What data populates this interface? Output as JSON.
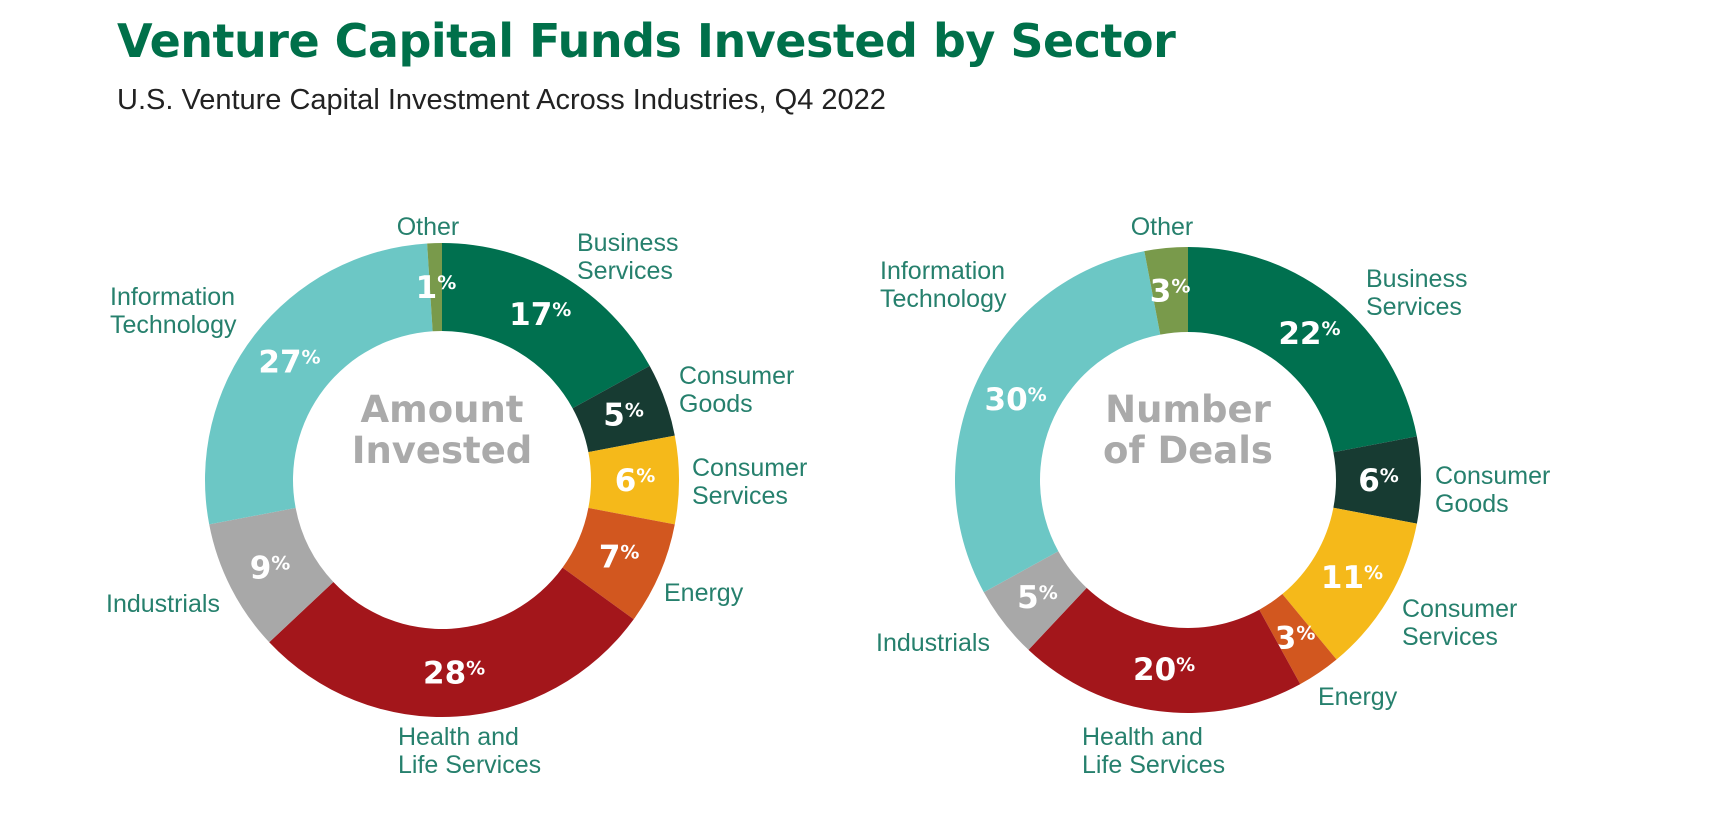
{
  "title": "Venture Capital Funds Invested by Sector",
  "subtitle": "U.S. Venture Capital Investment Across Industries, Q4 2022",
  "colors": {
    "title": "#00704a",
    "label": "#26806d",
    "center": "#aaaaaa"
  },
  "chart_data": [
    {
      "type": "pie",
      "center_label": [
        "Amount",
        "Invested"
      ],
      "unit": "%",
      "slices": [
        {
          "name": "Business Services",
          "name_lines": [
            "Business",
            "Services"
          ],
          "value": 17,
          "color": "#00704f"
        },
        {
          "name": "Consumer Goods",
          "name_lines": [
            "Consumer",
            "Goods"
          ],
          "value": 5,
          "color": "#173b32"
        },
        {
          "name": "Consumer Services",
          "name_lines": [
            "Consumer",
            "Services"
          ],
          "value": 6,
          "color": "#f5b91a"
        },
        {
          "name": "Energy",
          "name_lines": [
            "Energy"
          ],
          "value": 7,
          "color": "#d2571f"
        },
        {
          "name": "Health and Life Services",
          "name_lines": [
            "Health and",
            "Life Services"
          ],
          "value": 28,
          "color": "#a3161b"
        },
        {
          "name": "Industrials",
          "name_lines": [
            "Industrials"
          ],
          "value": 9,
          "color": "#a8a8a8"
        },
        {
          "name": "Information Technology",
          "name_lines": [
            "Information",
            "Technology"
          ],
          "value": 27,
          "color": "#6cc7c5"
        },
        {
          "name": "Other",
          "name_lines": [
            "Other"
          ],
          "value": 1,
          "color": "#799a4b"
        }
      ]
    },
    {
      "type": "pie",
      "center_label": [
        "Number",
        "of Deals"
      ],
      "unit": "%",
      "slices": [
        {
          "name": "Business Services",
          "name_lines": [
            "Business",
            "Services"
          ],
          "value": 22,
          "color": "#00704f"
        },
        {
          "name": "Consumer Goods",
          "name_lines": [
            "Consumer",
            "Goods"
          ],
          "value": 6,
          "color": "#173b32"
        },
        {
          "name": "Consumer Services",
          "name_lines": [
            "Consumer",
            "Services"
          ],
          "value": 11,
          "color": "#f5b91a"
        },
        {
          "name": "Energy",
          "name_lines": [
            "Energy"
          ],
          "value": 3,
          "color": "#d2571f"
        },
        {
          "name": "Health and Life Services",
          "name_lines": [
            "Health and",
            "Life Services"
          ],
          "value": 20,
          "color": "#a3161b"
        },
        {
          "name": "Industrials",
          "name_lines": [
            "Industrials"
          ],
          "value": 5,
          "color": "#a8a8a8"
        },
        {
          "name": "Information Technology",
          "name_lines": [
            "Information",
            "Technology"
          ],
          "value": 30,
          "color": "#6cc7c5"
        },
        {
          "name": "Other",
          "name_lines": [
            "Other"
          ],
          "value": 3,
          "color": "#799a4b"
        }
      ]
    }
  ]
}
